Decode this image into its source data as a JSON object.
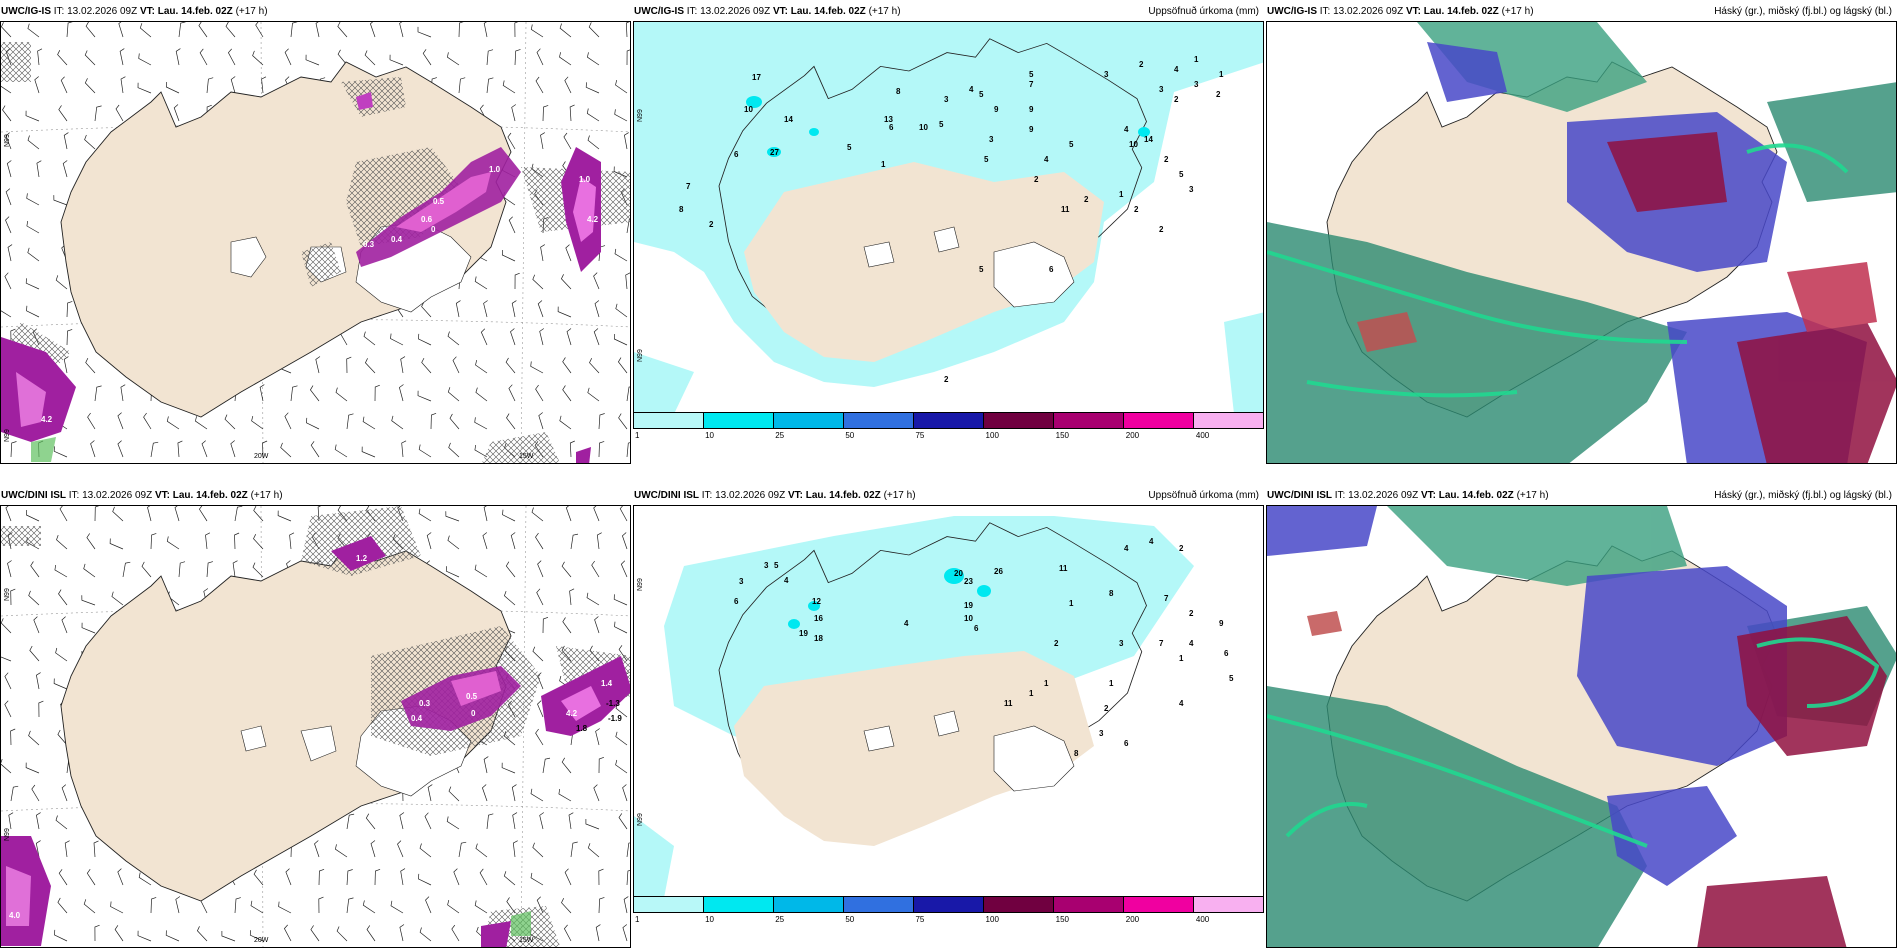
{
  "panels": {
    "p1": {
      "model": "UWC/IG-IS",
      "it_label": "IT:",
      "it_value": "13.02.2026 09Z",
      "vt_label": "VT:",
      "vt_value": "Lau. 14.feb. 02Z",
      "lead": "(+17 h)",
      "right_title": "",
      "axis": {
        "bottom_left": "20W",
        "bottom_right": "15W",
        "left_top": "N99",
        "left_bottom": "N99"
      },
      "values": [
        "0.5",
        "0.4",
        "0.3",
        "0.6",
        "0",
        "1.0",
        "4.2",
        "1.0",
        "4.2"
      ]
    },
    "p2": {
      "model": "UWC/IG-IS",
      "it_label": "IT:",
      "it_value": "13.02.2026 09Z",
      "vt_label": "VT:",
      "vt_value": "Lau. 14.feb. 02Z",
      "lead": "(+17 h)",
      "right_title": "Uppsöfnuð úrkoma (mm)",
      "axis": {
        "left_top": "N99",
        "left_bottom": "N99"
      },
      "values": [
        "17",
        "10",
        "14",
        "27",
        "13",
        "8",
        "2",
        "6",
        "7",
        "1",
        "5",
        "6",
        "10",
        "8",
        "5",
        "3",
        "5",
        "9",
        "7",
        "5",
        "4",
        "9",
        "9",
        "5",
        "3",
        "5",
        "10",
        "14",
        "5",
        "3",
        "2",
        "2",
        "2",
        "1",
        "4",
        "2",
        "2",
        "6",
        "11",
        "5",
        "2",
        "4",
        "3",
        "2",
        "4",
        "1",
        "1",
        "2",
        "2",
        "3",
        "3"
      ]
    },
    "p3": {
      "model": "UWC/IG-IS",
      "it_label": "IT:",
      "it_value": "13.02.2026 09Z",
      "vt_label": "VT:",
      "vt_value": "Lau. 14.feb. 02Z",
      "lead": "(+17 h)",
      "right_title": "Háský (gr.), miðský (fj.bl.) og lágský (bl.)"
    },
    "p4": {
      "model": "UWC/DINI ISL",
      "it_label": "IT:",
      "it_value": "13.02.2026 09Z",
      "vt_label": "VT:",
      "vt_value": "Lau. 14.feb. 02Z",
      "lead": "(+17 h)",
      "right_title": "",
      "axis": {
        "bottom_left": "20W",
        "bottom_right": "15W",
        "left_top": "N99",
        "left_bottom": "N99"
      },
      "values": [
        "0.5",
        "0.3",
        "0.4",
        "0",
        "1.4",
        "-1.3",
        "-1.9",
        "4.2",
        "1.8",
        "4.0",
        "1.2"
      ]
    },
    "p5": {
      "model": "UWC/DINI ISL",
      "it_label": "IT:",
      "it_value": "13.02.2026 09Z",
      "vt_label": "VT:",
      "vt_value": "Lau. 14.feb. 02Z",
      "lead": "(+17 h)",
      "right_title": "Uppsöfnuð úrkoma (mm)",
      "axis": {
        "left_top": "N99",
        "left_bottom": "N99"
      },
      "values": [
        "3",
        "4",
        "5",
        "3",
        "6",
        "12",
        "16",
        "19",
        "18",
        "20",
        "23",
        "26",
        "19",
        "10",
        "6",
        "4",
        "11",
        "8",
        "4",
        "4",
        "2",
        "7",
        "2",
        "4",
        "9",
        "7",
        "1",
        "3",
        "2",
        "1",
        "2",
        "3",
        "1",
        "1",
        "11",
        "6",
        "6",
        "5",
        "4",
        "8",
        "1"
      ]
    },
    "p6": {
      "model": "UWC/DINI ISL",
      "it_label": "IT:",
      "it_value": "13.02.2026 09Z",
      "vt_label": "VT:",
      "vt_value": "Lau. 14.feb. 02Z",
      "lead": "(+17 h)",
      "right_title": "Háský (gr.), miðský (fj.bl.) og lágský (bl.)"
    }
  },
  "colorbar": {
    "labels": [
      "1",
      "10",
      "25",
      "50",
      "75",
      "100",
      "150",
      "200",
      "400"
    ],
    "colors": [
      "#b8f8f8",
      "#00e8f0",
      "#00b8e8",
      "#3070e0",
      "#1818a8",
      "#700040",
      "#a80070",
      "#f000a0",
      "#f8b0f0"
    ]
  },
  "colors": {
    "land": "#f2e4d2",
    "ice": "#ffffff",
    "precip": "#b4f8f8",
    "snow": "#a020a0"
  }
}
